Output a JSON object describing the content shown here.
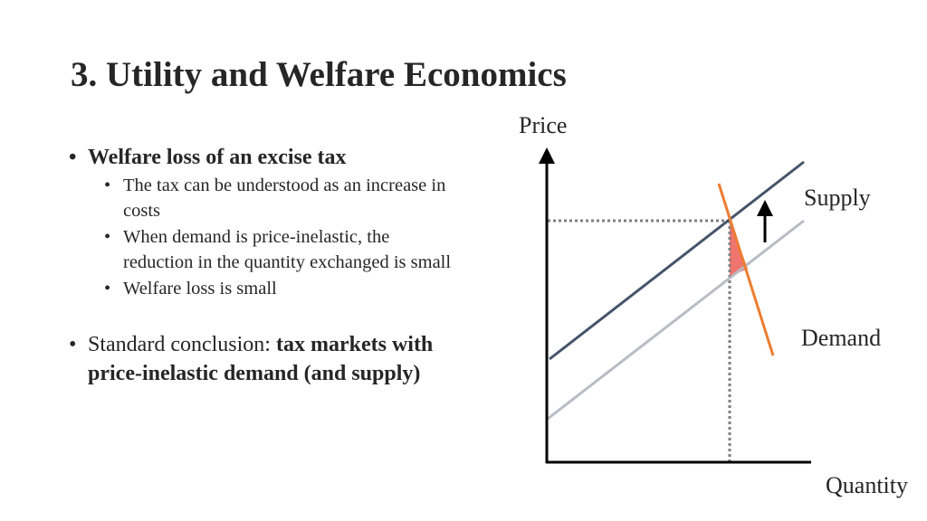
{
  "slide": {
    "title": "3. Utility and Welfare Economics"
  },
  "bullets": {
    "heading": "Welfare loss of  an excise tax",
    "sub": [
      "The tax can be understood as an increase in costs",
      "When demand is price-inelastic, the reduction in the quantity exchanged is small",
      "Welfare loss is small"
    ],
    "conclusion_prefix": "Standard conclusion: ",
    "conclusion_bold": "tax markets with price-inelastic demand (and supply)"
  },
  "diagram": {
    "y_axis_label": "Price",
    "x_axis_label": "Quantity",
    "supply_label": "Supply",
    "demand_label": "Demand",
    "colors": {
      "axis": "#000000",
      "supply_after_tax": "#44546a",
      "supply_before_tax": "#b7bcc5",
      "demand": "#ed7d31",
      "welfare_loss": "#f0756f",
      "guide": "#7f7f7f"
    },
    "arrow_direction": "up"
  }
}
